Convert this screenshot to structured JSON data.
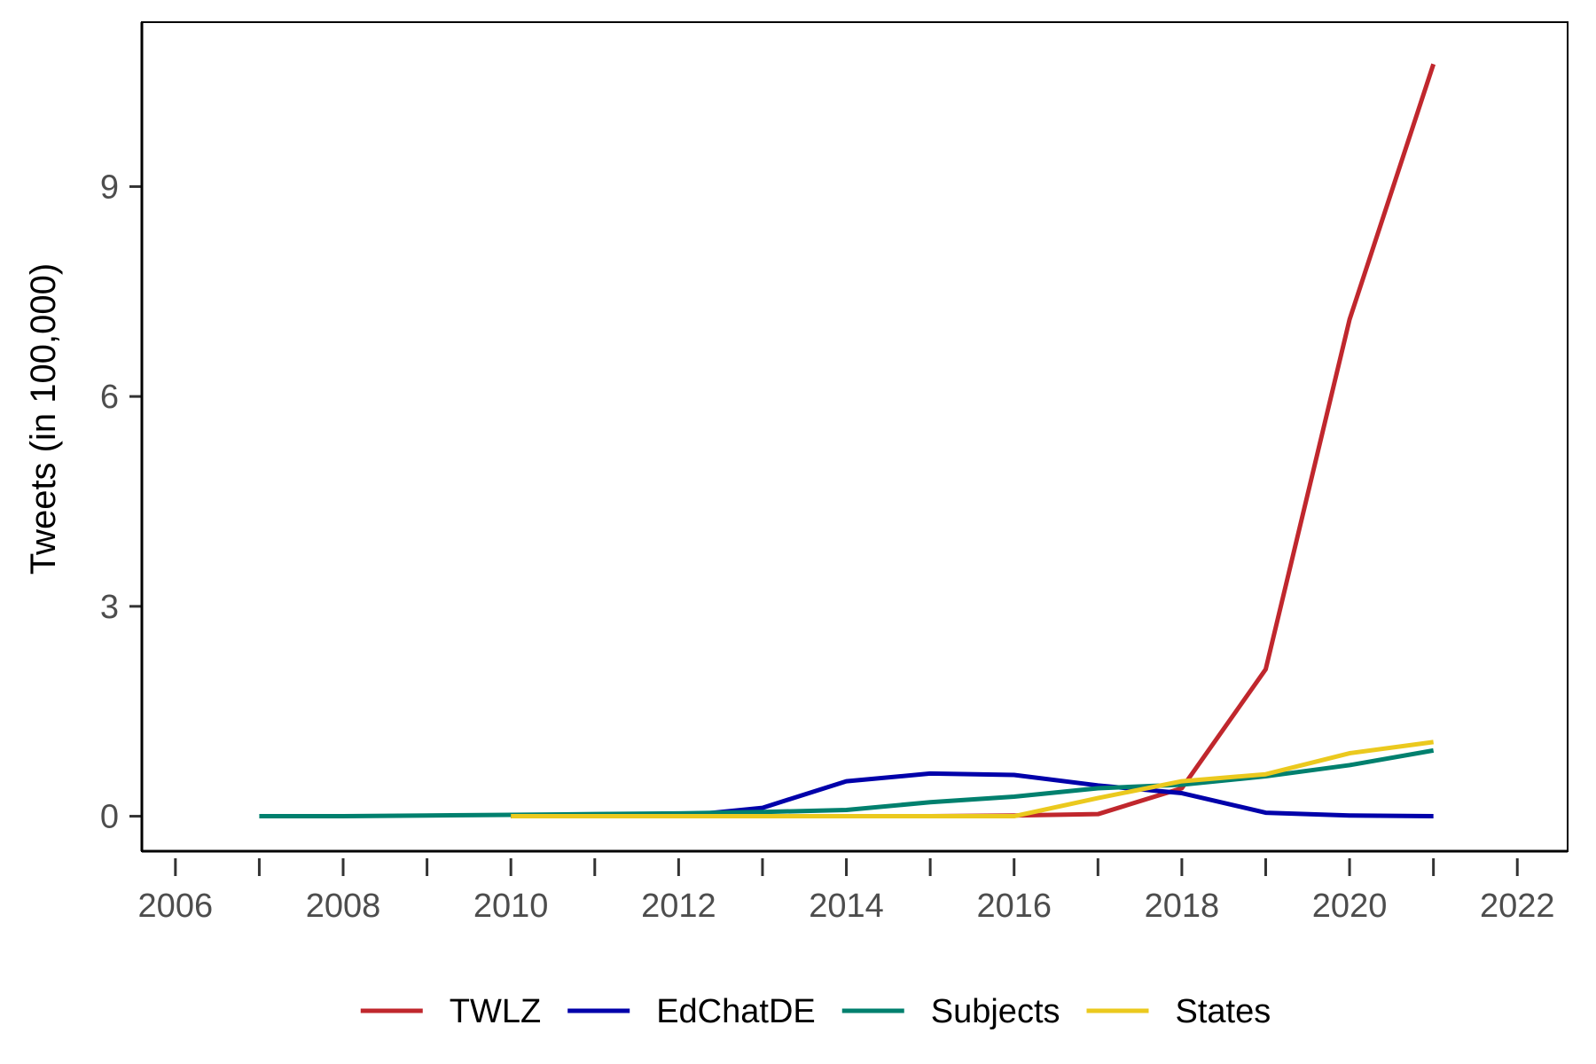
{
  "chart_data": {
    "type": "line",
    "title": "",
    "xlabel": "",
    "ylabel": "Tweets (in 100,000)",
    "xlim": [
      2005.6,
      2022.6
    ],
    "ylim": [
      -0.5,
      11.35
    ],
    "x_ticks": [
      2006,
      2007,
      2008,
      2009,
      2010,
      2011,
      2012,
      2013,
      2014,
      2015,
      2016,
      2017,
      2018,
      2019,
      2020,
      2021,
      2022
    ],
    "x_tick_labels": [
      {
        "value": 2006,
        "label": "2006"
      },
      {
        "value": 2008,
        "label": "2008"
      },
      {
        "value": 2010,
        "label": "2010"
      },
      {
        "value": 2012,
        "label": "2012"
      },
      {
        "value": 2014,
        "label": "2014"
      },
      {
        "value": 2016,
        "label": "2016"
      },
      {
        "value": 2018,
        "label": "2018"
      },
      {
        "value": 2020,
        "label": "2020"
      },
      {
        "value": 2022,
        "label": "2022"
      }
    ],
    "y_ticks": [
      {
        "value": 0,
        "label": "0"
      },
      {
        "value": 3,
        "label": "3"
      },
      {
        "value": 6,
        "label": "6"
      },
      {
        "value": 9,
        "label": "9"
      }
    ],
    "grid": false,
    "legend_position": "bottom",
    "series": [
      {
        "name": "TWLZ",
        "color": "#c0272d",
        "x": [
          2010,
          2011,
          2012,
          2013,
          2014,
          2015,
          2016,
          2017,
          2018,
          2019,
          2020,
          2021
        ],
        "y": [
          0,
          0,
          0,
          0,
          0,
          0,
          0.01,
          0.03,
          0.4,
          2.1,
          7.1,
          10.75
        ]
      },
      {
        "name": "EdChatDE",
        "color": "#0000aa",
        "x": [
          2010,
          2011,
          2012,
          2013,
          2014,
          2015,
          2016,
          2017,
          2018,
          2019,
          2020,
          2021
        ],
        "y": [
          0,
          0,
          0,
          0.12,
          0.5,
          0.61,
          0.59,
          0.44,
          0.33,
          0.05,
          0.01,
          0
        ]
      },
      {
        "name": "Subjects",
        "color": "#00806e",
        "x": [
          2007,
          2008,
          2009,
          2010,
          2011,
          2012,
          2013,
          2014,
          2015,
          2016,
          2017,
          2018,
          2019,
          2020,
          2021
        ],
        "y": [
          0,
          0,
          0.01,
          0.02,
          0.03,
          0.04,
          0.06,
          0.09,
          0.2,
          0.28,
          0.4,
          0.45,
          0.57,
          0.73,
          0.94
        ]
      },
      {
        "name": "States",
        "color": "#ebc91e",
        "x": [
          2010,
          2011,
          2012,
          2013,
          2014,
          2015,
          2016,
          2017,
          2018,
          2019,
          2020,
          2021
        ],
        "y": [
          0,
          0,
          0,
          0,
          0,
          0,
          0,
          0.26,
          0.5,
          0.6,
          0.9,
          1.06
        ]
      }
    ]
  }
}
